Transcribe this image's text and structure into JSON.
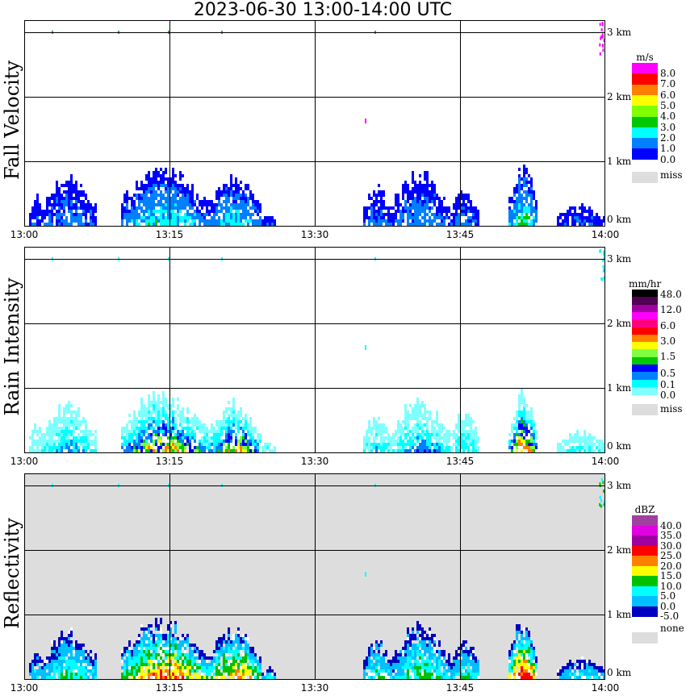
{
  "title": "2023-06-30  13:00-14:00 UTC",
  "time_labels": [
    "13:00",
    "13:15",
    "13:30",
    "13:45",
    "14:00"
  ],
  "height_labels": [
    "3 km",
    "2 km",
    "1 km",
    "0 km"
  ],
  "panels": [
    {
      "name": "Fall Velocity",
      "unit": "m/s",
      "colors": [
        "#ff00ff",
        "#ff0000",
        "#ff8000",
        "#ffff00",
        "#80ff00",
        "#00c800",
        "#00ffff",
        "#0080ff",
        "#0000ff"
      ],
      "labels": [
        "8.0",
        "7.0",
        "6.0",
        "5.0",
        "4.0",
        "3.0",
        "2.0",
        "1.0",
        "0.0"
      ],
      "missing_label": "miss",
      "missing_color": "#dddddd"
    },
    {
      "name": "Rain Intensity",
      "unit": "mm/hr",
      "colors": [
        "#000000",
        "#500050",
        "#a000a0",
        "#ff00ff",
        "#ff0080",
        "#ff0000",
        "#ff8000",
        "#ffff00",
        "#80ff40",
        "#00c800",
        "#0000ff",
        "#0080ff",
        "#00ffff",
        "#80ffff"
      ],
      "labels": [
        "48.0",
        "12.0",
        "6.0",
        "3.0",
        "1.5",
        "0.5",
        "0.1",
        "0.0"
      ],
      "missing_label": "miss",
      "missing_color": "#dddddd"
    },
    {
      "name": "Reflectivity",
      "unit": "dBZ",
      "colors": [
        "#a040a0",
        "#e000e0",
        "#a000a0",
        "#ff0000",
        "#ff8000",
        "#ffff00",
        "#00c000",
        "#00ffff",
        "#00c0ff",
        "#0000c0"
      ],
      "labels": [
        "40.0",
        "35.0",
        "30.0",
        "25.0",
        "20.0",
        "15.0",
        "10.0",
        "5.0",
        "0.0",
        "-5.0"
      ],
      "missing_label": "none",
      "missing_color": "#dddddd"
    }
  ],
  "chart_data": {
    "type": "heatmap",
    "x_range_utc": [
      "13:00",
      "14:00"
    ],
    "y_range_km": [
      0,
      3.2
    ],
    "xticks": [
      "13:00",
      "13:15",
      "13:30",
      "13:45",
      "14:00"
    ],
    "yticks_km": [
      0,
      1,
      2,
      3
    ],
    "grid": true,
    "echo_events": [
      {
        "start_min": 0.5,
        "end_min": 7.5,
        "top_km": 0.75,
        "peak_fall_velocity": 2.0,
        "peak_rain_mmhr": 0.5,
        "peak_dbz": 10
      },
      {
        "start_min": 10,
        "end_min": 19,
        "top_km": 0.9,
        "peak_fall_velocity": 2.0,
        "peak_rain_mmhr": 3.0,
        "peak_dbz": 20
      },
      {
        "start_min": 19,
        "end_min": 26,
        "top_km": 0.75,
        "peak_fall_velocity": 2.0,
        "peak_rain_mmhr": 3.0,
        "peak_dbz": 20
      },
      {
        "start_min": 35,
        "end_min": 47,
        "top_km": 0.8,
        "peak_fall_velocity": 1.5,
        "peak_rain_mmhr": 0.5,
        "peak_dbz": 10
      },
      {
        "start_min": 50,
        "end_min": 53,
        "top_km": 0.9,
        "peak_fall_velocity": 3.0,
        "peak_rain_mmhr": 6.0,
        "peak_dbz": 25
      },
      {
        "start_min": 55,
        "end_min": 60,
        "top_km": 0.3,
        "peak_fall_velocity": 1.0,
        "peak_rain_mmhr": 0.1,
        "peak_dbz": 5
      }
    ]
  }
}
